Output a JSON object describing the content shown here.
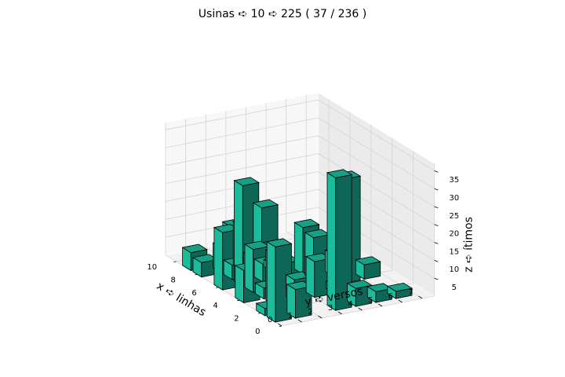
{
  "chart_data": {
    "type": "bar3d",
    "title": "Usinas ➪ 10 ➪ 225 ( 37 / 236 )",
    "xlabel": "x ➪ linhas",
    "ylabel": "y ➪ versos",
    "zlabel": "z ➪ ítimos",
    "x_ticks": [
      "0",
      "2",
      "4",
      "6",
      "8",
      "10"
    ],
    "y_ticks": [
      "0",
      "1",
      "2",
      "3",
      "4",
      "5",
      "6",
      "7"
    ],
    "z_ticks": [
      "5",
      "10",
      "15",
      "20",
      "25",
      "30",
      "35"
    ],
    "xlim": [
      0,
      11
    ],
    "ylim": [
      0,
      7.6
    ],
    "zlim": [
      0,
      37
    ],
    "bar_color": "#1abc9c",
    "edge_color": "#000000",
    "bars": [
      {
        "x": 1,
        "y": 0,
        "z": 21
      },
      {
        "x": 1,
        "y": 1,
        "z": 8
      },
      {
        "x": 1,
        "y": 3,
        "z": 37
      },
      {
        "x": 1,
        "y": 4,
        "z": 5
      },
      {
        "x": 1,
        "y": 5,
        "z": 3
      },
      {
        "x": 1,
        "y": 6,
        "z": 2
      },
      {
        "x": 2,
        "y": 0,
        "z": 2
      },
      {
        "x": 3,
        "y": 1,
        "z": 14
      },
      {
        "x": 3,
        "y": 2,
        "z": 6
      },
      {
        "x": 3,
        "y": 3,
        "z": 10
      },
      {
        "x": 3,
        "y": 4,
        "z": 2
      },
      {
        "x": 4,
        "y": 0,
        "z": 9
      },
      {
        "x": 4,
        "y": 1,
        "z": 3
      },
      {
        "x": 4,
        "y": 5,
        "z": 29
      },
      {
        "x": 4,
        "y": 6,
        "z": 4
      },
      {
        "x": 5,
        "y": 1,
        "z": 12
      },
      {
        "x": 5,
        "y": 4,
        "z": 12
      },
      {
        "x": 5,
        "y": 5,
        "z": 6
      },
      {
        "x": 6,
        "y": 0,
        "z": 16
      },
      {
        "x": 6,
        "y": 1,
        "z": 28
      },
      {
        "x": 6,
        "y": 2,
        "z": 5
      },
      {
        "x": 6,
        "y": 3,
        "z": 4
      },
      {
        "x": 6,
        "y": 4,
        "z": 13
      },
      {
        "x": 7,
        "y": 1,
        "z": 4
      },
      {
        "x": 7,
        "y": 2,
        "z": 5
      },
      {
        "x": 7,
        "y": 3,
        "z": 2
      },
      {
        "x": 8,
        "y": 0,
        "z": 4
      },
      {
        "x": 8,
        "y": 1,
        "z": 7
      },
      {
        "x": 8,
        "y": 2,
        "z": 12
      },
      {
        "x": 8,
        "y": 3,
        "z": 16
      },
      {
        "x": 9,
        "y": 0,
        "z": 5
      },
      {
        "x": 9,
        "y": 2,
        "z": 10
      },
      {
        "x": 9,
        "y": 3,
        "z": 4
      },
      {
        "x": 9,
        "y": 4,
        "z": 2
      }
    ]
  }
}
